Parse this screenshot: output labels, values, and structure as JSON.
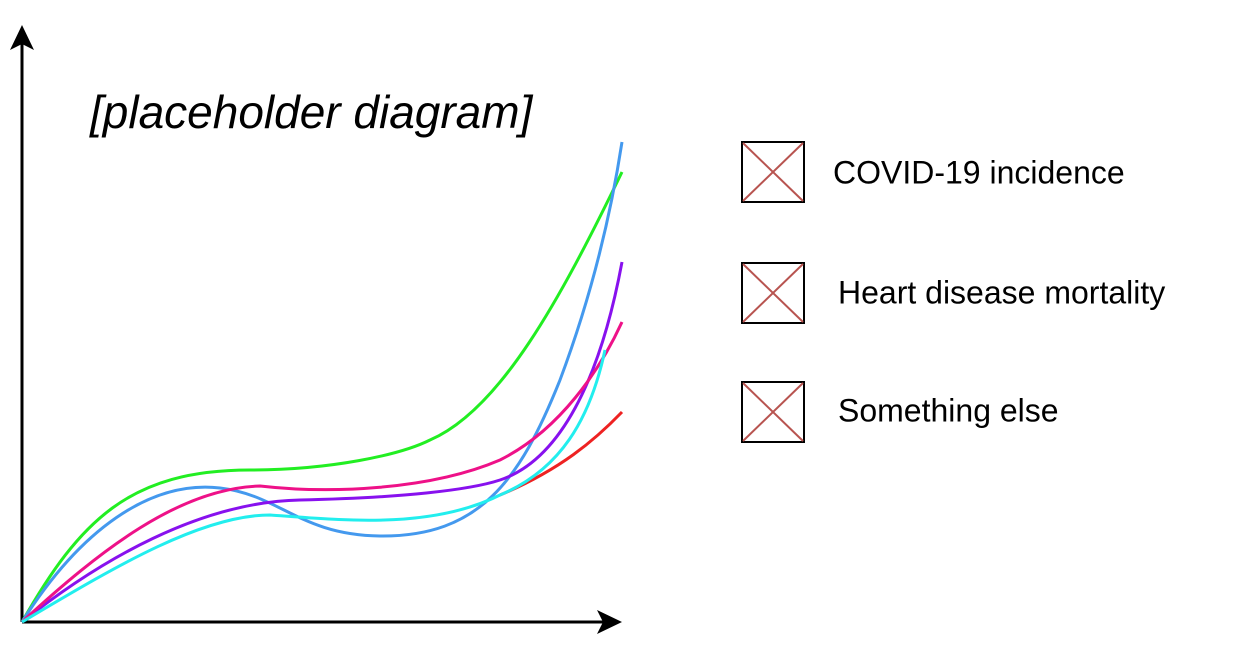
{
  "title": "[placeholder diagram]",
  "legend": [
    {
      "label": "COVID-19 incidence"
    },
    {
      "label": "Heart disease mortality"
    },
    {
      "label": "Something else"
    }
  ]
}
